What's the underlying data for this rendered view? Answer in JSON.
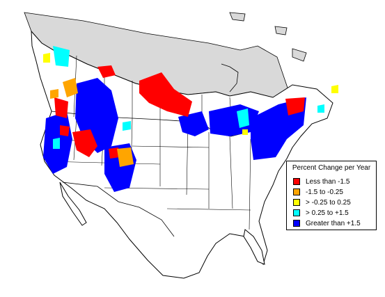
{
  "map": {
    "region": "North America (Canada, USA, Mexico)",
    "land_color": "#ffffff",
    "no_data_color": "#d9d9d9",
    "border_color": "#000000"
  },
  "legend": {
    "title": "Percent Change per Year",
    "items": [
      {
        "label": "Less than -1.5",
        "color": "#ff0000"
      },
      {
        "label": "-1.5 to -0.25",
        "color": "#ffa500"
      },
      {
        "label": "> -0.25 to 0.25",
        "color": "#ffff00"
      },
      {
        "label": "> 0.25 to +1.5",
        "color": "#00ffff"
      },
      {
        "label": "Greater than +1.5",
        "color": "#0000ff"
      }
    ]
  }
}
